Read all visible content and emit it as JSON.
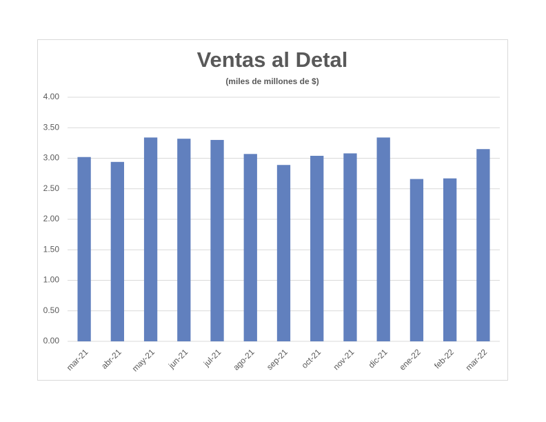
{
  "chart_data": {
    "type": "bar",
    "title": "Ventas al Detal",
    "subtitle": "(miles de millones de $)",
    "categories": [
      "mar-21",
      "abr-21",
      "may-21",
      "jun-21",
      "jul-21",
      "ago-21",
      "sep-21",
      "oct-21",
      "nov-21",
      "dic-21",
      "ene-22",
      "feb-22",
      "mar-22"
    ],
    "values": [
      3.02,
      2.94,
      3.34,
      3.32,
      3.3,
      3.07,
      2.89,
      3.04,
      3.08,
      3.34,
      2.66,
      2.67,
      3.15
    ],
    "color": "#6180be",
    "ylim": [
      0,
      4
    ],
    "yticks": [
      {
        "value": 0,
        "label": "0.00"
      },
      {
        "value": 0.5,
        "label": "0.50"
      },
      {
        "value": 1,
        "label": "1.00"
      },
      {
        "value": 1.5,
        "label": "1.50"
      },
      {
        "value": 2,
        "label": "2.00"
      },
      {
        "value": 2.5,
        "label": "2.50"
      },
      {
        "value": 3,
        "label": "3.00"
      },
      {
        "value": 3.5,
        "label": "3.50"
      },
      {
        "value": 4,
        "label": "4.00"
      }
    ],
    "grid": true
  }
}
